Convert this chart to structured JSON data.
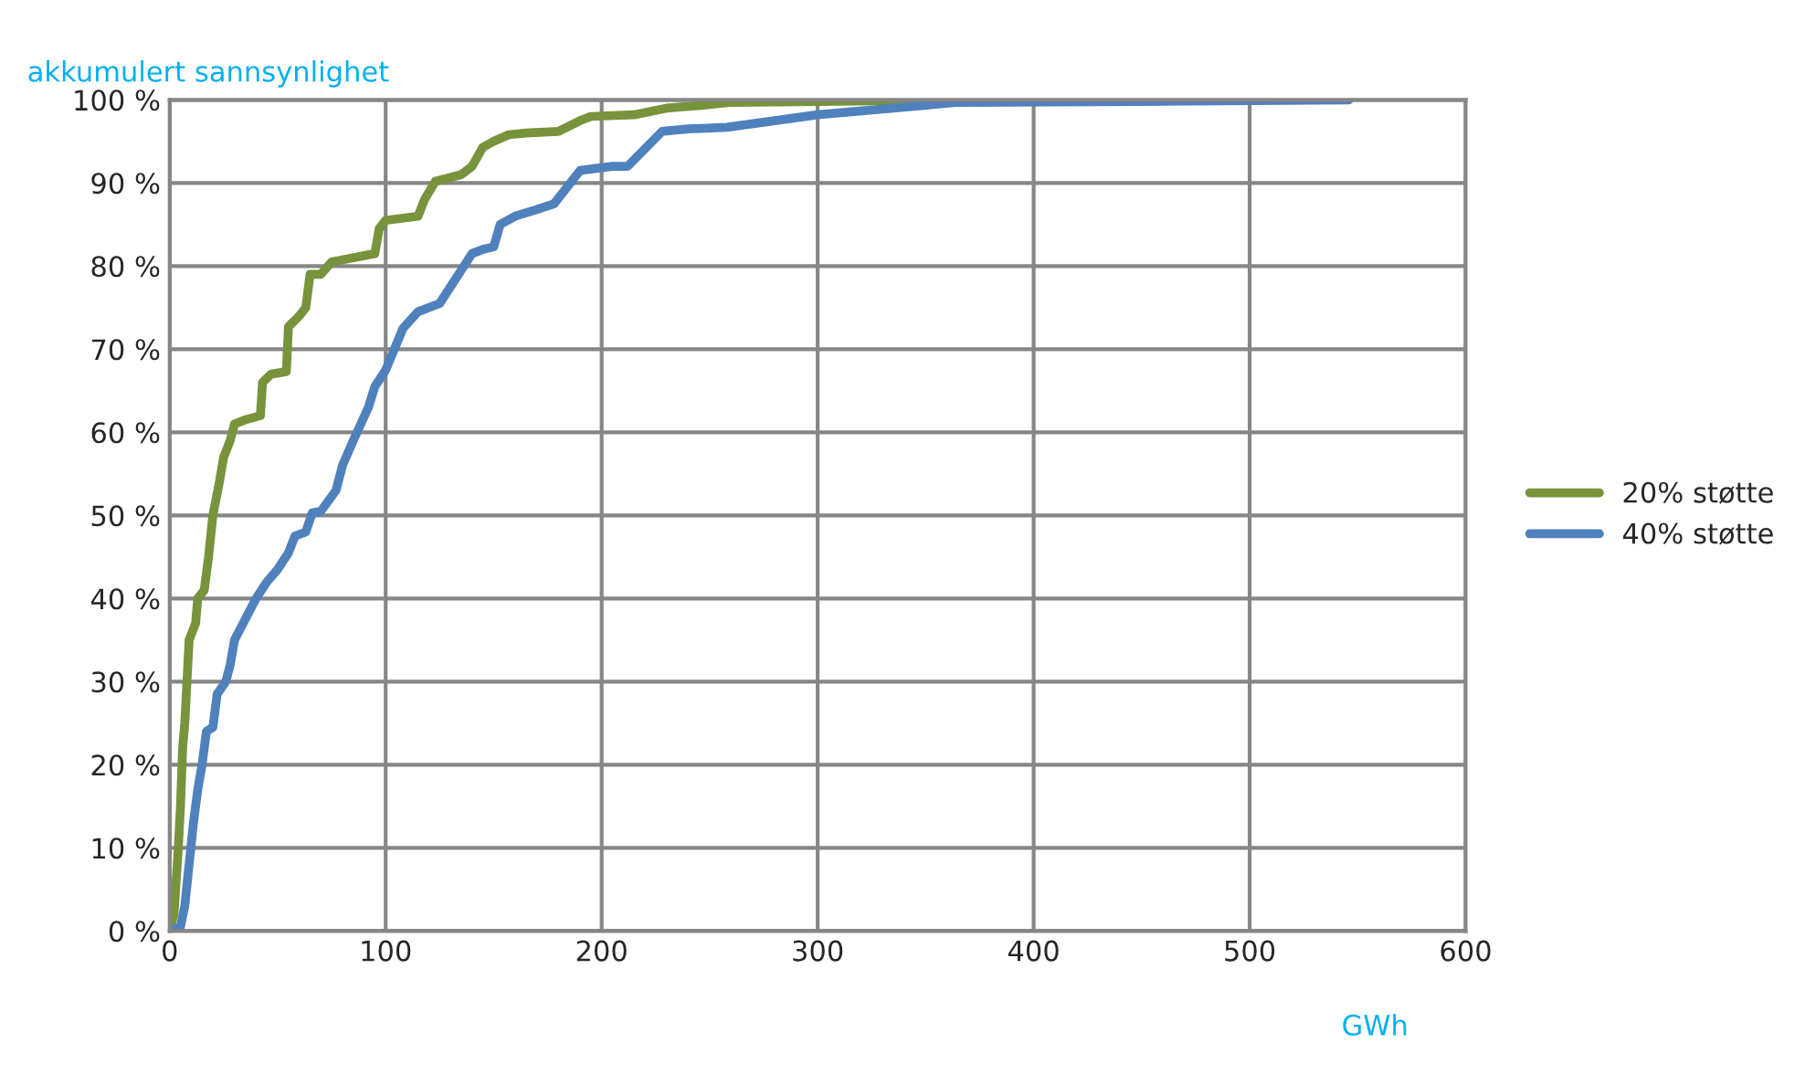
{
  "chart_data": {
    "type": "line",
    "xlabel": "GWh",
    "ylabel": "akkumulert sannsynlighet",
    "xlim": [
      0,
      600
    ],
    "xticks": [
      0,
      100,
      200,
      300,
      400,
      500,
      600
    ],
    "ylim": [
      0,
      100
    ],
    "yticks": [
      {
        "value": 0,
        "label": "0 %"
      },
      {
        "value": 10,
        "label": "10 %"
      },
      {
        "value": 20,
        "label": "20 %"
      },
      {
        "value": 30,
        "label": "30 %"
      },
      {
        "value": 40,
        "label": "40 %"
      },
      {
        "value": 50,
        "label": "50 %"
      },
      {
        "value": 60,
        "label": "60 %"
      },
      {
        "value": 70,
        "label": "70 %"
      },
      {
        "value": 80,
        "label": "80 %"
      },
      {
        "value": 90,
        "label": "90 %"
      },
      {
        "value": 100,
        "label": "100 %"
      }
    ],
    "grid": true,
    "legend": "right",
    "marker": "none",
    "line_style": "solid",
    "series": [
      {
        "name": "20% støtte",
        "color": "#77933c",
        "x": [
          0,
          2,
          4,
          5,
          6,
          7,
          8,
          9,
          12,
          13,
          16,
          18,
          20,
          23,
          25,
          28,
          30,
          35,
          42,
          43,
          47,
          54,
          55,
          60,
          63,
          65,
          70,
          75,
          85,
          95,
          97,
          100,
          115,
          118,
          123,
          135,
          140,
          145,
          150,
          157,
          165,
          180,
          190,
          195,
          215,
          230,
          245,
          260,
          300,
          360
        ],
        "values": [
          0,
          2,
          10,
          15,
          22,
          25,
          30,
          35,
          37,
          40,
          41,
          45,
          50,
          54,
          57,
          59,
          61,
          61.5,
          62,
          66,
          67,
          67.3,
          72.7,
          74,
          75,
          79,
          79,
          80.5,
          81,
          81.5,
          84.5,
          85.5,
          86,
          88,
          90.2,
          91,
          92,
          94.3,
          95,
          95.8,
          96,
          96.2,
          97.5,
          98,
          98.2,
          99,
          99.3,
          99.7,
          99.8,
          100
        ]
      },
      {
        "name": "40% støtte",
        "color": "#4f81bd",
        "x": [
          0,
          5,
          7,
          9,
          11,
          13,
          15,
          17,
          20,
          22,
          26,
          28,
          30,
          35,
          40,
          45,
          50,
          55,
          58,
          63,
          66,
          70,
          77,
          80,
          85,
          92,
          95,
          100,
          108,
          115,
          125,
          140,
          145,
          150,
          153,
          160,
          170,
          178,
          190,
          205,
          212,
          228,
          240,
          258,
          300,
          365,
          450,
          546
        ],
        "values": [
          0,
          0.5,
          3,
          8,
          13,
          17,
          20,
          24,
          24.5,
          28.5,
          30,
          32,
          35,
          37.5,
          40,
          42,
          43.5,
          45.5,
          47.5,
          48,
          50.3,
          50.5,
          53,
          56,
          59,
          63,
          65.5,
          67.5,
          72.5,
          74.5,
          75.5,
          81.5,
          82,
          82.3,
          85,
          86,
          86.8,
          87.5,
          91.5,
          92,
          92,
          96.2,
          96.5,
          96.7,
          98.2,
          99.7,
          99.8,
          100
        ]
      }
    ]
  }
}
